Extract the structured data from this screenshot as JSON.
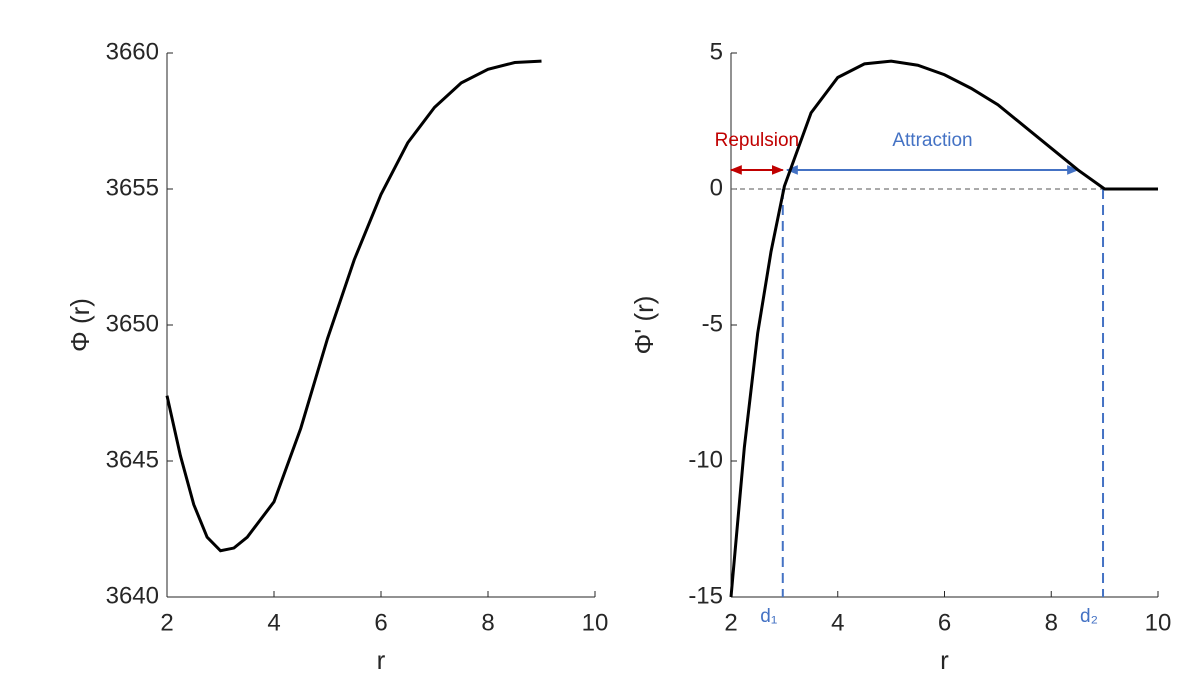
{
  "chart_data": [
    {
      "type": "line",
      "xlabel": "r",
      "ylabel": "Φ (r)",
      "x": [
        2,
        2.25,
        2.5,
        2.75,
        3,
        3.25,
        3.5,
        4,
        4.5,
        5,
        5.5,
        6,
        6.5,
        7,
        7.5,
        8,
        8.5,
        9
      ],
      "series": [
        {
          "color": "#000000",
          "values": [
            3647.4,
            3645.2,
            3643.4,
            3642.2,
            3641.7,
            3641.8,
            3642.2,
            3643.5,
            3646.2,
            3649.5,
            3652.4,
            3654.8,
            3656.7,
            3658.0,
            3658.9,
            3659.4,
            3659.65,
            3659.7
          ]
        }
      ],
      "xlim": [
        2,
        10
      ],
      "xticks": [
        2,
        4,
        6,
        8,
        10
      ],
      "ylim": [
        3640,
        3660
      ],
      "yticks": [
        3640,
        3645,
        3650,
        3655,
        3660
      ]
    },
    {
      "type": "line",
      "xlabel": "r",
      "ylabel": "Φ' (r)",
      "x": [
        2,
        2.25,
        2.5,
        2.75,
        3,
        3.5,
        4,
        4.5,
        5,
        5.5,
        6,
        6.5,
        7,
        7.5,
        8,
        8.5,
        9,
        9.5,
        10
      ],
      "series": [
        {
          "color": "#000000",
          "values": [
            -15,
            -9.5,
            -5.3,
            -2.3,
            0.1,
            2.8,
            4.1,
            4.6,
            4.7,
            4.55,
            4.2,
            3.7,
            3.1,
            2.3,
            1.5,
            0.7,
            0,
            0,
            0
          ]
        }
      ],
      "xlim": [
        2,
        10
      ],
      "xticks": [
        2,
        4,
        6,
        8,
        10
      ],
      "ylim": [
        -15,
        5
      ],
      "yticks": [
        -15,
        -10,
        -5,
        0,
        5
      ],
      "hline": 0,
      "markers": [
        {
          "label": "d₁",
          "x": 2.97,
          "color": "#4472c4"
        },
        {
          "label": "d₂",
          "x": 8.97,
          "color": "#4472c4"
        }
      ],
      "spans": [
        {
          "label": "Repulsion",
          "from": 2,
          "to": 2.97,
          "y": 0.7,
          "color": "#c00000"
        },
        {
          "label": "Attraction",
          "from": 3.05,
          "to": 8.5,
          "y": 0.7,
          "color": "#4472c4"
        }
      ]
    }
  ]
}
